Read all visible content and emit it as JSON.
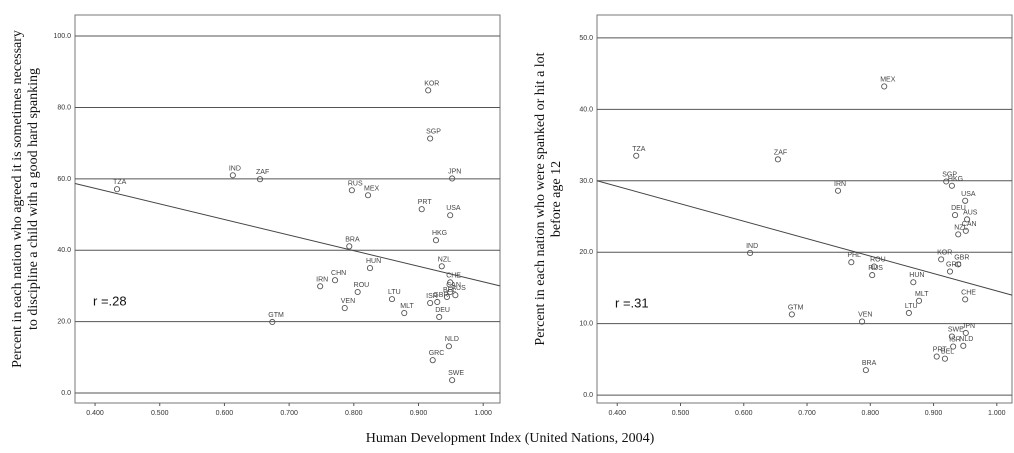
{
  "chart_data": [
    {
      "type": "scatter",
      "y_label": [
        "Percent in each nation who agreed it is sometimes necessary",
        "to discipline a child with a good hard spanking"
      ],
      "annotation": "r =.28",
      "labels": [
        "TZA",
        "IND",
        "ZAF",
        "RUS",
        "MEX",
        "KOR",
        "SGP",
        "JPN",
        "PRT",
        "USA",
        "BRA",
        "HKG",
        "HUN",
        "NZL",
        "CHN",
        "CHE",
        "CAN",
        "IRN",
        "ROU",
        "VEN",
        "LTU",
        "GBR",
        "ISR",
        "AUS",
        "BEL",
        "MLT",
        "GTM",
        "DEU",
        "NLD",
        "GRC",
        "SWE"
      ],
      "x": [
        0.434,
        0.613,
        0.655,
        0.797,
        0.822,
        0.915,
        0.918,
        0.952,
        0.905,
        0.949,
        0.793,
        0.927,
        0.825,
        0.936,
        0.771,
        0.949,
        0.949,
        0.748,
        0.806,
        0.786,
        0.859,
        0.929,
        0.918,
        0.957,
        0.944,
        0.878,
        0.674,
        0.932,
        0.947,
        0.922,
        0.952
      ],
      "values": [
        57.1,
        61.0,
        59.9,
        56.8,
        55.4,
        84.8,
        71.3,
        60.1,
        51.5,
        49.8,
        41.1,
        42.8,
        35.0,
        35.5,
        31.6,
        31.0,
        28.3,
        29.9,
        28.3,
        23.8,
        26.3,
        25.5,
        25.2,
        27.4,
        26.9,
        22.4,
        19.9,
        21.3,
        13.1,
        9.2,
        3.6
      ],
      "fit_line": {
        "x": [
          0.369,
          1.026
        ],
        "y": [
          58.7,
          30.0
        ]
      },
      "xlim": [
        0.369,
        1.026
      ],
      "ylim": [
        -2.8,
        105.9
      ],
      "xticks": [
        {
          "value": 0.4,
          "label": "0.400"
        },
        {
          "value": 0.5,
          "label": "0.500"
        },
        {
          "value": 0.6,
          "label": "0.600"
        },
        {
          "value": 0.7,
          "label": "0.700"
        },
        {
          "value": 0.8,
          "label": "0.800"
        },
        {
          "value": 0.9,
          "label": "0.900"
        },
        {
          "value": 1.0,
          "label": "1.000"
        }
      ],
      "yticks": [
        {
          "value": 0,
          "label": "0.0"
        },
        {
          "value": 20,
          "label": "20.0"
        },
        {
          "value": 40,
          "label": "40.0"
        },
        {
          "value": 60,
          "label": "60.0"
        },
        {
          "value": 80,
          "label": "80.0"
        },
        {
          "value": 100,
          "label": "100.0"
        }
      ],
      "grid": true
    },
    {
      "type": "scatter",
      "y_label": [
        "Percent in each nation who were spanked or hit a lot",
        "before age 12"
      ],
      "annotation": "r =.31",
      "labels": [
        "MEX",
        "TZA",
        "ZAF",
        "IRN",
        "SGP",
        "HKG",
        "USA",
        "DEU",
        "AUS",
        "NZL",
        "CAN",
        "IND",
        "PHL",
        "ROU",
        "KOR",
        "GBR",
        "GRC",
        "RUS",
        "HUN",
        "MLT",
        "CHE",
        "GTM",
        "LTU",
        "VEN",
        "JPN",
        "SWE",
        "ISR",
        "NLD",
        "BEL",
        "PRT",
        "BRA"
      ],
      "x": [
        0.822,
        0.43,
        0.654,
        0.749,
        0.92,
        0.929,
        0.95,
        0.934,
        0.953,
        0.939,
        0.951,
        0.61,
        0.77,
        0.806,
        0.912,
        0.939,
        0.926,
        0.803,
        0.868,
        0.877,
        0.95,
        0.676,
        0.861,
        0.787,
        0.951,
        0.929,
        0.931,
        0.947,
        0.918,
        0.905,
        0.793
      ],
      "values": [
        43.2,
        33.5,
        33.0,
        28.6,
        29.9,
        29.3,
        27.2,
        25.2,
        24.6,
        22.5,
        23.0,
        19.9,
        18.6,
        18.0,
        19.0,
        18.3,
        17.3,
        16.8,
        15.8,
        13.2,
        13.4,
        11.3,
        11.5,
        10.3,
        8.7,
        8.2,
        6.8,
        6.9,
        5.1,
        5.4,
        3.5
      ],
      "fit_line": {
        "x": [
          0.368,
          1.024
        ],
        "y": [
          30.0,
          14.0
        ]
      },
      "xlim": [
        0.368,
        1.024
      ],
      "ylim": [
        -1.1,
        53.2
      ],
      "xticks": [
        {
          "value": 0.4,
          "label": "0.400"
        },
        {
          "value": 0.5,
          "label": "0.500"
        },
        {
          "value": 0.6,
          "label": "0.600"
        },
        {
          "value": 0.7,
          "label": "0.700"
        },
        {
          "value": 0.8,
          "label": "0.800"
        },
        {
          "value": 0.9,
          "label": "0.900"
        },
        {
          "value": 1.0,
          "label": "1.000"
        }
      ],
      "yticks": [
        {
          "value": 0,
          "label": "0.0"
        },
        {
          "value": 10,
          "label": "10.0"
        },
        {
          "value": 20,
          "label": "20.0"
        },
        {
          "value": 30,
          "label": "30.0"
        },
        {
          "value": 40,
          "label": "40.0"
        },
        {
          "value": 50,
          "label": "50.0"
        }
      ],
      "grid": true
    }
  ],
  "x_axis_title": "Human Development Index  (United Nations, 2004)"
}
